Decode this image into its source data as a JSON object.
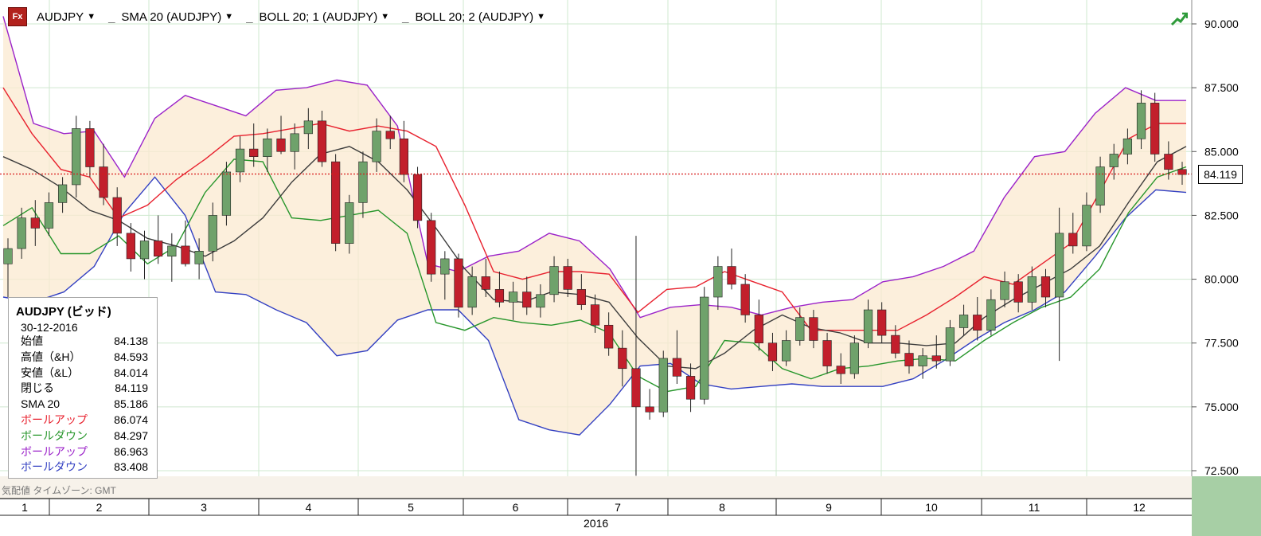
{
  "toolbar": {
    "logo_text": "Fx",
    "symbol": "AUDJPY",
    "sma": "SMA 20 (AUDJPY)",
    "boll1": "BOLL 20; 1 (AUDJPY)",
    "boll2": "BOLL 20; 2 (AUDJPY)"
  },
  "colors": {
    "up_candle": "#6fa26b",
    "down_candle": "#c21f2c",
    "sma": "#3c3c3c",
    "boll1_upper": "#e8212e",
    "boll1_lower": "#27962b",
    "boll2_upper": "#9b22c9",
    "boll2_lower": "#3340c2",
    "band_fill": "#fbe9d0",
    "grid": "#cfe8cf",
    "current_price_line": "#d81a1a"
  },
  "info": {
    "title": "AUDJPY (ビッド)",
    "date": "30-12-2016",
    "rows": [
      {
        "label": "始値",
        "value": "84.138",
        "color": "#000000"
      },
      {
        "label": "高値（&H）",
        "value": "84.593",
        "color": "#000000"
      },
      {
        "label": "安値（&L）",
        "value": "84.014",
        "color": "#000000"
      },
      {
        "label": "閉じる",
        "value": "84.119",
        "color": "#000000"
      },
      {
        "label": "SMA 20",
        "value": "85.186",
        "color": "#000000"
      },
      {
        "label": "ボールアップ",
        "value": "86.074",
        "color": "#e8212e"
      },
      {
        "label": "ボールダウン",
        "value": "84.297",
        "color": "#27962b"
      },
      {
        "label": "ボールアップ",
        "value": "86.963",
        "color": "#9b22c9"
      },
      {
        "label": "ボールダウン",
        "value": "83.408",
        "color": "#3340c2"
      }
    ]
  },
  "footer": "気配値 タイムゾーン: GMT",
  "current_price": "84.119",
  "chart_data": {
    "type": "candlestick",
    "symbol": "AUDJPY",
    "ylim": [
      72.0,
      91.0
    ],
    "y_ticks": [
      "72.500",
      "75.000",
      "77.500",
      "80.000",
      "82.500",
      "85.000",
      "87.500",
      "90.000"
    ],
    "y_tick_values": [
      72.5,
      75,
      77.5,
      80,
      82.5,
      85,
      87.5,
      90
    ],
    "months": [
      "1",
      "2",
      "3",
      "4",
      "5",
      "6",
      "7",
      "8",
      "9",
      "10",
      "11",
      "12"
    ],
    "year": "2016",
    "current_price": 84.119,
    "sma20": [
      84.8,
      84.3,
      83.6,
      82.7,
      82.3,
      81.6,
      81.3,
      80.9,
      81.5,
      82.4,
      83.8,
      84.9,
      85.2,
      84.6,
      83.5,
      82.0,
      80.4,
      79.2,
      79.1,
      79.5,
      79.4,
      79.1,
      77.7,
      76.6,
      76.5,
      77.1,
      78.0,
      78.6,
      78.1,
      77.9,
      77.5,
      77.5,
      77.4,
      77.5,
      78.5,
      79.2,
      79.8,
      80.4,
      81.3,
      83.0,
      84.6,
      85.2
    ],
    "boll1_upper": [
      87.5,
      85.7,
      84.3,
      84.0,
      82.4,
      82.9,
      83.9,
      84.7,
      85.6,
      85.7,
      85.9,
      86.1,
      85.8,
      86.0,
      85.8,
      85.2,
      82.9,
      80.3,
      80.0,
      80.3,
      80.3,
      80.2,
      78.7,
      79.6,
      79.7,
      80.3,
      79.9,
      79.5,
      78.0,
      78.0,
      78.0,
      78.0,
      78.6,
      79.3,
      80.1,
      79.8,
      80.6,
      81.4,
      83.4,
      85.5,
      86.1,
      86.1
    ],
    "boll1_lower": [
      82.1,
      82.8,
      81.0,
      81.0,
      81.7,
      80.6,
      81.3,
      83.4,
      84.7,
      84.6,
      82.4,
      82.3,
      82.5,
      82.7,
      81.8,
      78.3,
      78.0,
      78.5,
      78.3,
      78.2,
      78.4,
      77.9,
      76.2,
      75.6,
      75.8,
      77.6,
      77.5,
      76.5,
      76.1,
      76.5,
      76.6,
      76.8,
      76.9,
      76.8,
      77.6,
      78.3,
      78.9,
      79.3,
      80.4,
      82.6,
      84.0,
      84.4
    ],
    "boll2_upper": [
      90.3,
      86.1,
      85.7,
      85.8,
      84.0,
      86.3,
      87.2,
      86.8,
      86.4,
      87.4,
      87.5,
      87.8,
      87.6,
      86.0,
      80.6,
      80.3,
      80.9,
      81.1,
      81.8,
      81.5,
      80.4,
      78.5,
      78.9,
      79.0,
      78.9,
      78.6,
      78.9,
      79.1,
      79.2,
      79.9,
      80.1,
      80.5,
      81.1,
      83.2,
      84.8,
      85.0,
      86.5,
      87.5,
      87.0,
      87.0
    ],
    "boll2_lower": [
      79.3,
      79.1,
      79.5,
      80.5,
      82.6,
      84.0,
      82.5,
      79.5,
      79.4,
      78.8,
      78.3,
      77.0,
      77.2,
      78.4,
      78.8,
      78.8,
      77.6,
      74.5,
      74.1,
      73.9,
      75.1,
      76.6,
      76.7,
      75.9,
      75.7,
      75.8,
      75.9,
      75.8,
      75.8,
      75.8,
      76.1,
      76.8,
      77.6,
      78.3,
      78.8,
      79.5,
      80.9,
      82.4,
      83.5,
      83.4
    ],
    "candles": [
      {
        "o": 80.6,
        "h": 81.6,
        "l": 79.3,
        "c": 81.2
      },
      {
        "o": 81.2,
        "h": 82.8,
        "l": 80.8,
        "c": 82.4
      },
      {
        "o": 82.4,
        "h": 83.1,
        "l": 81.3,
        "c": 82.0
      },
      {
        "o": 82.0,
        "h": 83.4,
        "l": 81.7,
        "c": 83.0
      },
      {
        "o": 83.0,
        "h": 84.0,
        "l": 82.6,
        "c": 83.7
      },
      {
        "o": 83.7,
        "h": 86.4,
        "l": 83.2,
        "c": 85.9
      },
      {
        "o": 85.9,
        "h": 86.2,
        "l": 84.0,
        "c": 84.4
      },
      {
        "o": 84.4,
        "h": 85.3,
        "l": 82.9,
        "c": 83.2
      },
      {
        "o": 83.2,
        "h": 83.6,
        "l": 81.3,
        "c": 81.8
      },
      {
        "o": 81.8,
        "h": 82.2,
        "l": 80.3,
        "c": 80.8
      },
      {
        "o": 80.8,
        "h": 81.9,
        "l": 80.0,
        "c": 81.5
      },
      {
        "o": 81.5,
        "h": 82.5,
        "l": 80.6,
        "c": 80.9
      },
      {
        "o": 80.9,
        "h": 81.8,
        "l": 79.9,
        "c": 81.3
      },
      {
        "o": 81.3,
        "h": 82.3,
        "l": 80.5,
        "c": 80.6
      },
      {
        "o": 80.6,
        "h": 81.6,
        "l": 80.0,
        "c": 81.1
      },
      {
        "o": 81.1,
        "h": 83.0,
        "l": 80.7,
        "c": 82.5
      },
      {
        "o": 82.5,
        "h": 84.6,
        "l": 82.1,
        "c": 84.2
      },
      {
        "o": 84.2,
        "h": 85.6,
        "l": 83.8,
        "c": 85.1
      },
      {
        "o": 85.1,
        "h": 86.1,
        "l": 84.4,
        "c": 84.8
      },
      {
        "o": 84.8,
        "h": 85.9,
        "l": 84.2,
        "c": 85.5
      },
      {
        "o": 85.5,
        "h": 86.4,
        "l": 84.9,
        "c": 85.0
      },
      {
        "o": 85.0,
        "h": 86.1,
        "l": 84.3,
        "c": 85.7
      },
      {
        "o": 85.7,
        "h": 86.7,
        "l": 85.1,
        "c": 86.2
      },
      {
        "o": 86.2,
        "h": 86.6,
        "l": 84.4,
        "c": 84.6
      },
      {
        "o": 84.6,
        "h": 84.9,
        "l": 81.1,
        "c": 81.4
      },
      {
        "o": 81.4,
        "h": 83.3,
        "l": 81.0,
        "c": 83.0
      },
      {
        "o": 83.0,
        "h": 85.0,
        "l": 82.4,
        "c": 84.6
      },
      {
        "o": 84.6,
        "h": 86.3,
        "l": 84.2,
        "c": 85.8
      },
      {
        "o": 85.8,
        "h": 86.4,
        "l": 85.1,
        "c": 85.5
      },
      {
        "o": 85.5,
        "h": 86.2,
        "l": 83.8,
        "c": 84.1
      },
      {
        "o": 84.1,
        "h": 84.4,
        "l": 82.0,
        "c": 82.3
      },
      {
        "o": 82.3,
        "h": 82.6,
        "l": 79.9,
        "c": 80.2
      },
      {
        "o": 80.2,
        "h": 81.1,
        "l": 79.2,
        "c": 80.8
      },
      {
        "o": 80.8,
        "h": 81.0,
        "l": 78.5,
        "c": 78.9
      },
      {
        "o": 78.9,
        "h": 80.5,
        "l": 78.6,
        "c": 80.1
      },
      {
        "o": 80.1,
        "h": 80.8,
        "l": 79.3,
        "c": 79.6
      },
      {
        "o": 79.6,
        "h": 80.3,
        "l": 78.9,
        "c": 79.1
      },
      {
        "o": 79.1,
        "h": 79.9,
        "l": 78.4,
        "c": 79.5
      },
      {
        "o": 79.5,
        "h": 80.1,
        "l": 78.6,
        "c": 78.9
      },
      {
        "o": 78.9,
        "h": 79.8,
        "l": 78.5,
        "c": 79.4
      },
      {
        "o": 79.4,
        "h": 80.9,
        "l": 79.1,
        "c": 80.5
      },
      {
        "o": 80.5,
        "h": 80.8,
        "l": 79.3,
        "c": 79.6
      },
      {
        "o": 79.6,
        "h": 80.2,
        "l": 78.8,
        "c": 79.0
      },
      {
        "o": 79.0,
        "h": 79.4,
        "l": 77.9,
        "c": 78.2
      },
      {
        "o": 78.2,
        "h": 78.7,
        "l": 77.0,
        "c": 77.3
      },
      {
        "o": 77.3,
        "h": 78.0,
        "l": 75.8,
        "c": 76.5
      },
      {
        "o": 76.5,
        "h": 81.7,
        "l": 72.3,
        "c": 75.0
      },
      {
        "o": 75.0,
        "h": 75.7,
        "l": 74.5,
        "c": 74.8
      },
      {
        "o": 74.8,
        "h": 77.2,
        "l": 74.6,
        "c": 76.9
      },
      {
        "o": 76.9,
        "h": 78.0,
        "l": 75.9,
        "c": 76.2
      },
      {
        "o": 76.2,
        "h": 76.7,
        "l": 74.8,
        "c": 75.3
      },
      {
        "o": 75.3,
        "h": 79.7,
        "l": 75.1,
        "c": 79.3
      },
      {
        "o": 79.3,
        "h": 80.9,
        "l": 78.8,
        "c": 80.5
      },
      {
        "o": 80.5,
        "h": 81.2,
        "l": 79.6,
        "c": 79.8
      },
      {
        "o": 79.8,
        "h": 80.2,
        "l": 78.3,
        "c": 78.6
      },
      {
        "o": 78.6,
        "h": 79.2,
        "l": 77.2,
        "c": 77.5
      },
      {
        "o": 77.5,
        "h": 77.9,
        "l": 76.4,
        "c": 76.8
      },
      {
        "o": 76.8,
        "h": 78.0,
        "l": 76.6,
        "c": 77.6
      },
      {
        "o": 77.6,
        "h": 78.9,
        "l": 77.4,
        "c": 78.5
      },
      {
        "o": 78.5,
        "h": 78.8,
        "l": 77.3,
        "c": 77.6
      },
      {
        "o": 77.6,
        "h": 77.9,
        "l": 76.3,
        "c": 76.6
      },
      {
        "o": 76.6,
        "h": 77.1,
        "l": 75.9,
        "c": 76.3
      },
      {
        "o": 76.3,
        "h": 77.8,
        "l": 76.1,
        "c": 77.5
      },
      {
        "o": 77.5,
        "h": 79.2,
        "l": 77.3,
        "c": 78.8
      },
      {
        "o": 78.8,
        "h": 79.1,
        "l": 77.5,
        "c": 77.8
      },
      {
        "o": 77.8,
        "h": 78.2,
        "l": 76.9,
        "c": 77.1
      },
      {
        "o": 77.1,
        "h": 77.6,
        "l": 76.3,
        "c": 76.6
      },
      {
        "o": 76.6,
        "h": 77.3,
        "l": 76.1,
        "c": 77.0
      },
      {
        "o": 77.0,
        "h": 77.8,
        "l": 76.5,
        "c": 76.8
      },
      {
        "o": 76.8,
        "h": 78.4,
        "l": 76.6,
        "c": 78.1
      },
      {
        "o": 78.1,
        "h": 79.0,
        "l": 77.8,
        "c": 78.6
      },
      {
        "o": 78.6,
        "h": 79.3,
        "l": 77.6,
        "c": 78.0
      },
      {
        "o": 78.0,
        "h": 79.6,
        "l": 77.8,
        "c": 79.2
      },
      {
        "o": 79.2,
        "h": 80.3,
        "l": 78.9,
        "c": 79.9
      },
      {
        "o": 79.9,
        "h": 80.2,
        "l": 78.7,
        "c": 79.1
      },
      {
        "o": 79.1,
        "h": 80.5,
        "l": 78.8,
        "c": 80.1
      },
      {
        "o": 80.1,
        "h": 80.4,
        "l": 78.9,
        "c": 79.3
      },
      {
        "o": 79.3,
        "h": 82.8,
        "l": 76.8,
        "c": 81.8
      },
      {
        "o": 81.8,
        "h": 82.6,
        "l": 81.0,
        "c": 81.3
      },
      {
        "o": 81.3,
        "h": 83.4,
        "l": 81.1,
        "c": 82.9
      },
      {
        "o": 82.9,
        "h": 84.8,
        "l": 82.6,
        "c": 84.4
      },
      {
        "o": 84.4,
        "h": 85.3,
        "l": 83.9,
        "c": 84.9
      },
      {
        "o": 84.9,
        "h": 85.9,
        "l": 84.5,
        "c": 85.5
      },
      {
        "o": 85.5,
        "h": 87.4,
        "l": 85.1,
        "c": 86.9
      },
      {
        "o": 86.9,
        "h": 87.3,
        "l": 84.6,
        "c": 84.9
      },
      {
        "o": 84.9,
        "h": 85.4,
        "l": 83.9,
        "c": 84.3
      },
      {
        "o": 84.3,
        "h": 84.6,
        "l": 83.7,
        "c": 84.1
      }
    ]
  }
}
